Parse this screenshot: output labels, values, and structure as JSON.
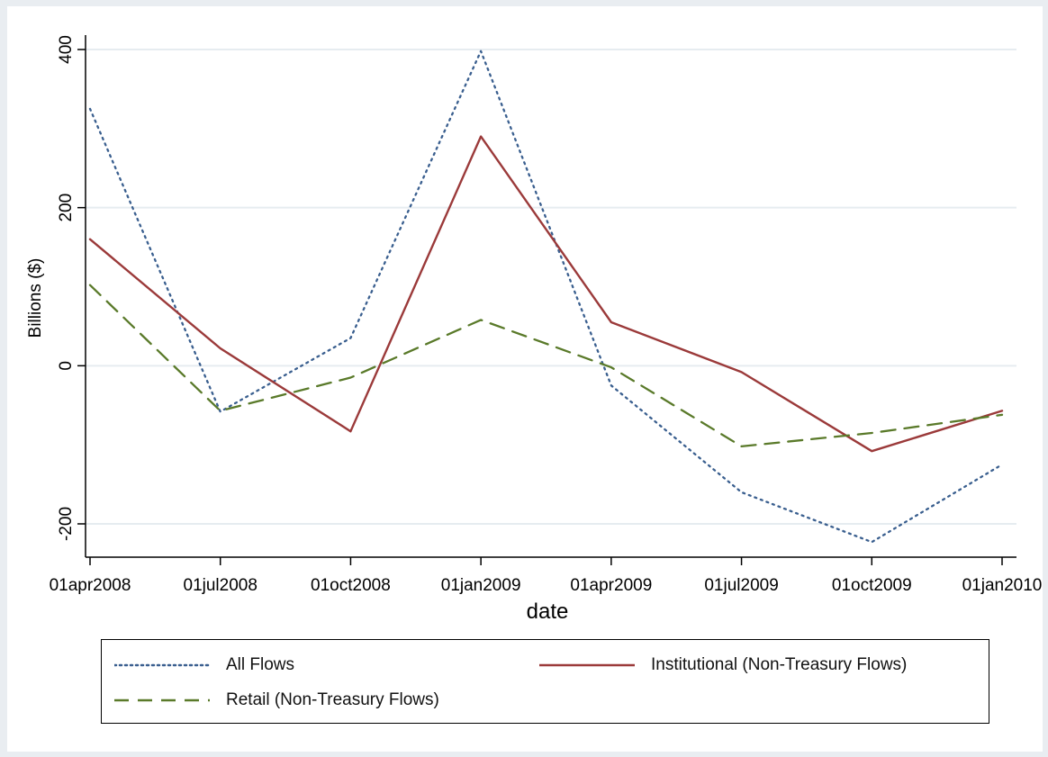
{
  "chart_data": {
    "type": "line",
    "title": "",
    "xlabel": "date",
    "ylabel": "Billions ($)",
    "x": [
      "01apr2008",
      "01jul2008",
      "01oct2008",
      "01jan2009",
      "01apr2009",
      "01jul2009",
      "01oct2009",
      "01jan2010"
    ],
    "x_tick_labels": [
      "01apr2008",
      "01jul2008",
      "01oct2008",
      "01jan2009",
      "01apr2009",
      "01jul2009",
      "01oct2009",
      "01jan2010"
    ],
    "y_ticks": [
      -200,
      0,
      200,
      400
    ],
    "y_tick_labels": [
      "-200",
      "0",
      "200",
      "400"
    ],
    "ylim": [
      -240,
      420
    ],
    "grid": true,
    "legend_position": "bottom",
    "series": [
      {
        "name": "All Flows",
        "color": "#3a5f8f",
        "style": "dotted",
        "values": [
          325,
          -58,
          35,
          398,
          -25,
          -160,
          -223,
          -125
        ]
      },
      {
        "name": "Institutional (Non-Treasury Flows)",
        "color": "#9b3a3a",
        "style": "solid",
        "values": [
          160,
          22,
          -83,
          290,
          55,
          -8,
          -108,
          -57
        ]
      },
      {
        "name": "Retail (Non-Treasury Flows)",
        "color": "#5a7a2a",
        "style": "dashed",
        "values": [
          102,
          -57,
          -15,
          58,
          -2,
          -102,
          -85,
          -62
        ]
      }
    ]
  }
}
